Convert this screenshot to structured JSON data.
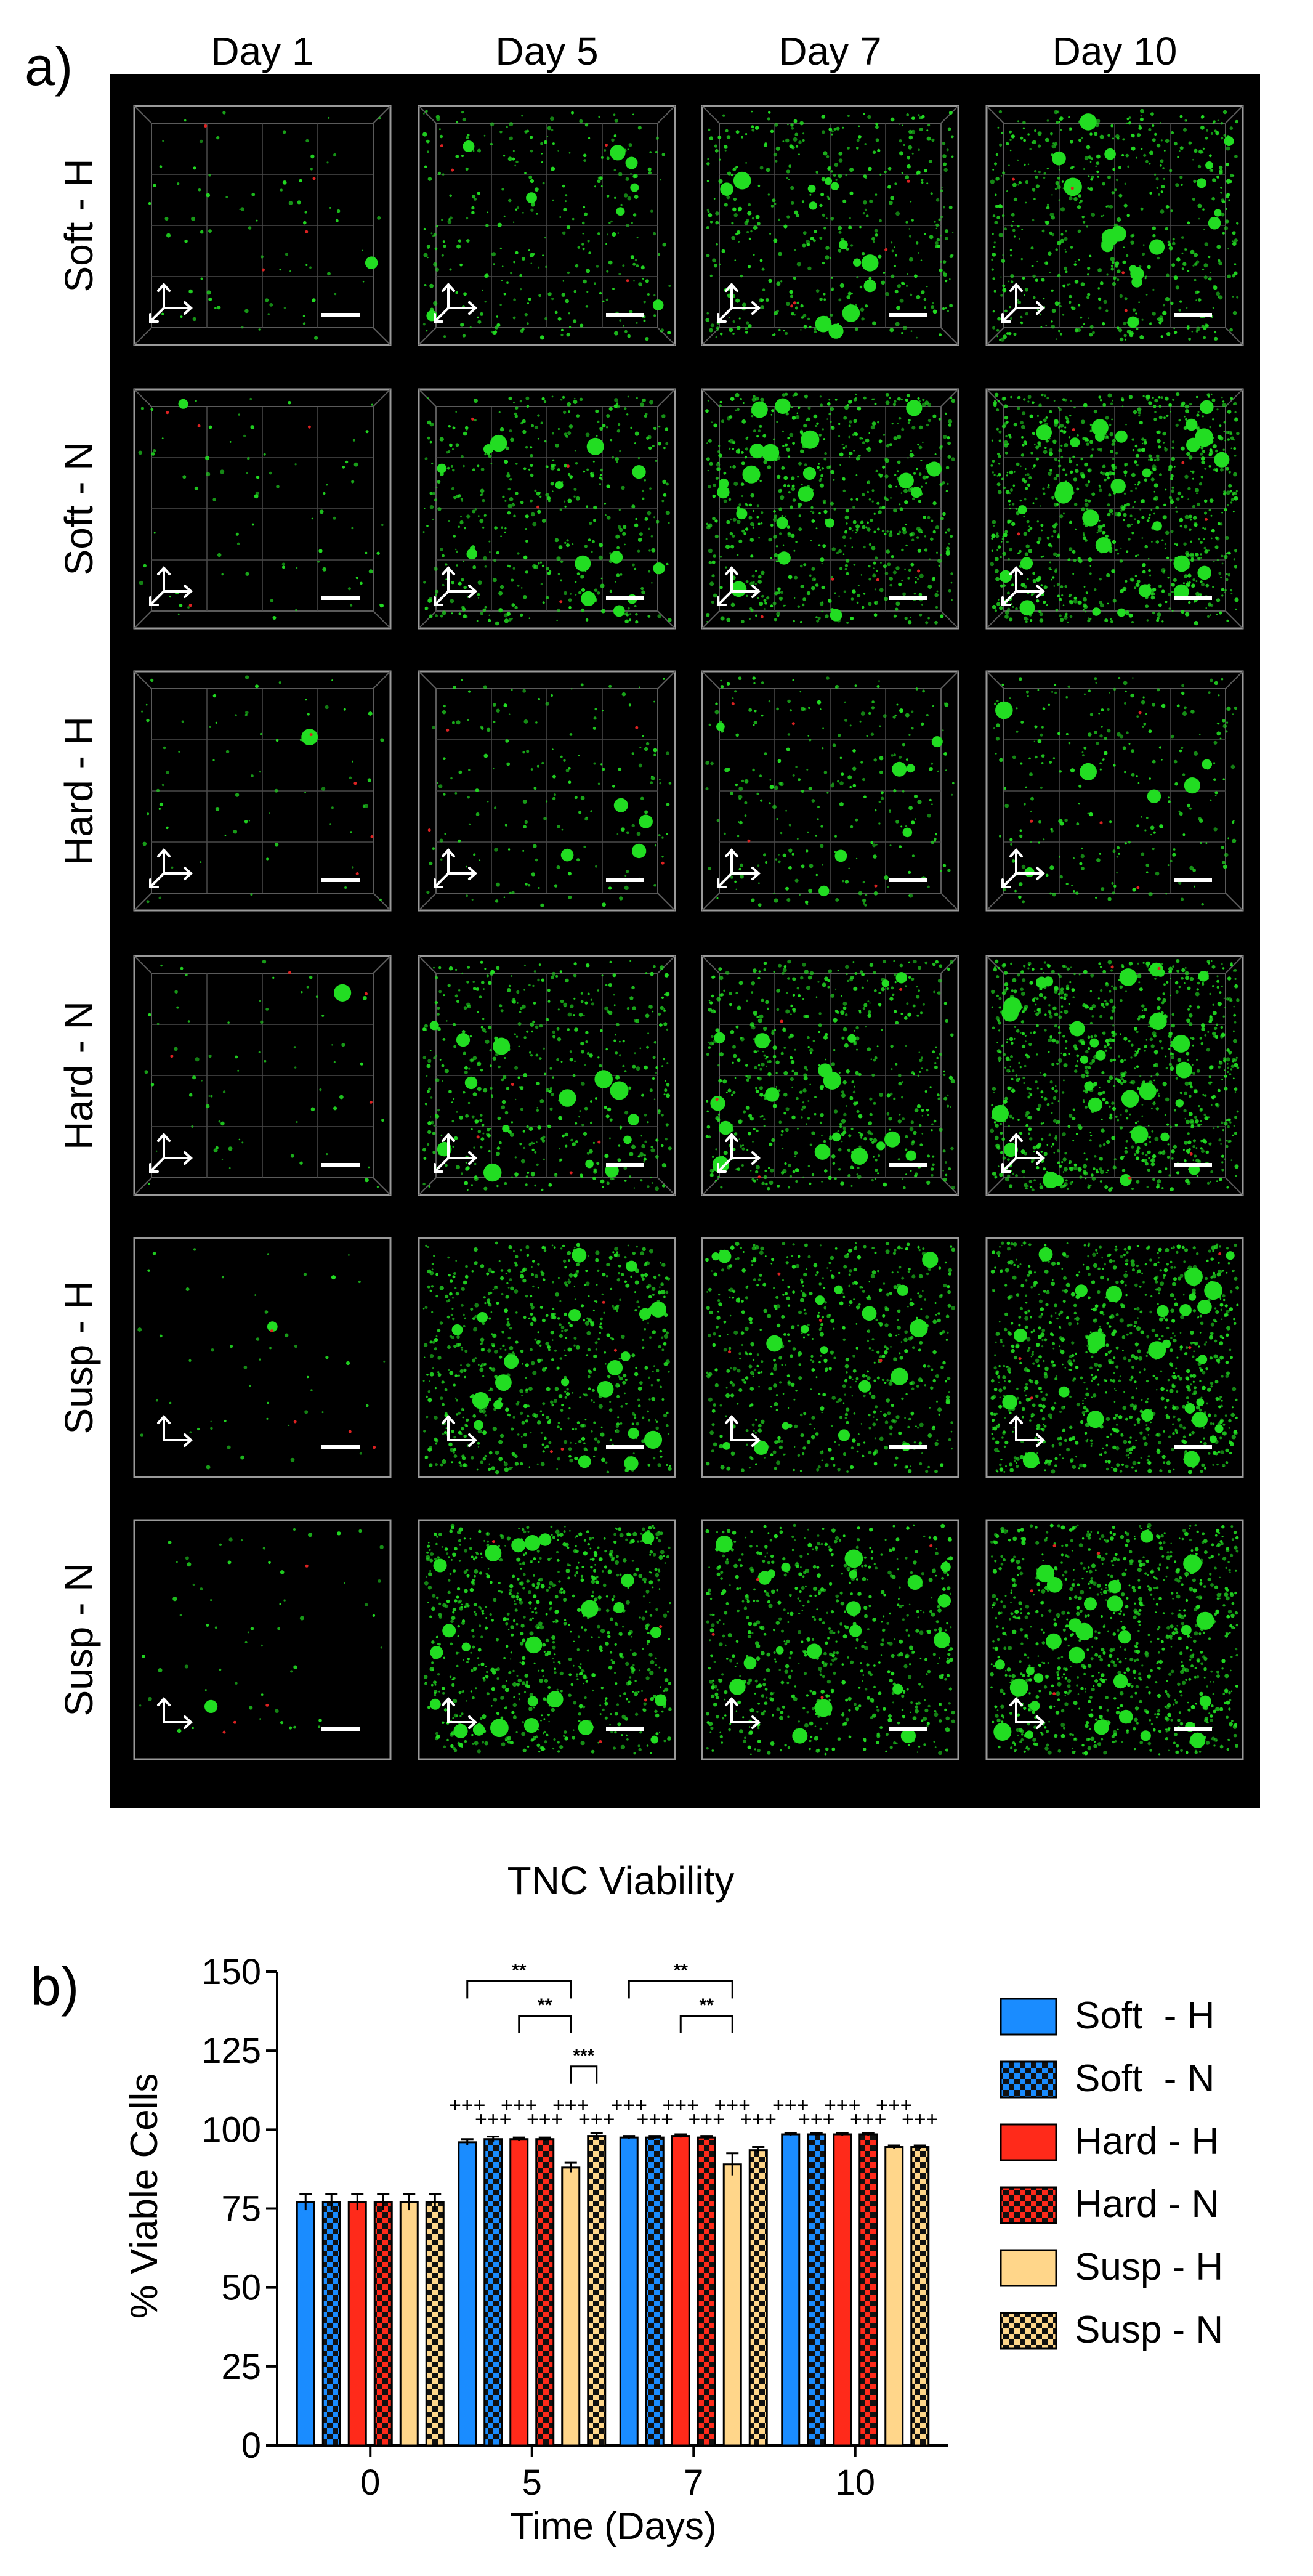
{
  "panel_a": {
    "label": "a)",
    "columns": [
      "Day 1",
      "Day 5",
      "Day 7",
      "Day 10"
    ],
    "rows": [
      "Soft - H",
      "Soft - N",
      "Hard - H",
      "Hard - N",
      "Susp - H",
      "Susp - N"
    ],
    "density": [
      [
        0.05,
        0.3,
        0.45,
        0.6
      ],
      [
        0.05,
        0.45,
        0.7,
        0.95
      ],
      [
        0.04,
        0.15,
        0.25,
        0.25
      ],
      [
        0.04,
        0.5,
        0.6,
        1.0
      ],
      [
        0.02,
        0.75,
        0.65,
        1.0
      ],
      [
        0.03,
        0.85,
        0.7,
        1.0
      ]
    ],
    "colors": {
      "live": "#22dd22",
      "dead": "#dd2222",
      "frame": "#9a9a9a",
      "background": "#000000",
      "arrow": "#ffffff"
    }
  },
  "panel_b": {
    "label": "b)"
  },
  "chart_data": {
    "type": "bar",
    "title": "TNC Viability",
    "xlabel": "Time (Days)",
    "ylabel": "% Viable Cells",
    "categories": [
      "0",
      "5",
      "7",
      "10"
    ],
    "ylim": [
      0,
      150
    ],
    "yticks": [
      0,
      25,
      50,
      75,
      100,
      125,
      150
    ],
    "series": [
      {
        "name": "Soft  - H",
        "color": "#1a8cff",
        "pattern": "solid",
        "values": [
          77,
          96,
          97.5,
          98.5
        ],
        "errors": [
          2.5,
          1,
          0.5,
          0.5
        ]
      },
      {
        "name": "Soft  - N",
        "color": "#1a8cff",
        "pattern": "checker",
        "values": [
          77,
          97,
          97.5,
          98.5
        ],
        "errors": [
          2.5,
          0.8,
          0.5,
          0.5
        ]
      },
      {
        "name": "Hard - H",
        "color": "#ff2a1a",
        "pattern": "solid",
        "values": [
          77,
          97,
          98,
          98.5
        ],
        "errors": [
          2.5,
          0.5,
          0.5,
          0.5
        ]
      },
      {
        "name": "Hard - N",
        "color": "#ff2a1a",
        "pattern": "checker",
        "values": [
          77,
          97,
          97.5,
          98.5
        ],
        "errors": [
          2.5,
          0.5,
          0.5,
          0.5
        ]
      },
      {
        "name": "Susp - H",
        "color": "#ffd68a",
        "pattern": "solid",
        "values": [
          77,
          88,
          89,
          94.5
        ],
        "errors": [
          2.5,
          1.5,
          3.5,
          0.5
        ]
      },
      {
        "name": "Susp - N",
        "color": "#ffd68a",
        "pattern": "checker",
        "values": [
          77,
          98,
          93.5,
          94.5
        ],
        "errors": [
          2.5,
          1,
          1,
          0.5
        ]
      }
    ],
    "significance": [
      {
        "category": 1,
        "from": 0,
        "to": 4,
        "label": "**",
        "level": 3
      },
      {
        "category": 1,
        "from": 2,
        "to": 4,
        "label": "**",
        "level": 2
      },
      {
        "category": 1,
        "from": 4,
        "to": 5,
        "label": "***",
        "level": 1
      },
      {
        "category": 2,
        "from": 0,
        "to": 4,
        "label": "**",
        "level": 3
      },
      {
        "category": 2,
        "from": 2,
        "to": 4,
        "label": "**",
        "level": 2
      }
    ],
    "plus_marker": "+++",
    "plus_categories": [
      1,
      2,
      3
    ]
  }
}
